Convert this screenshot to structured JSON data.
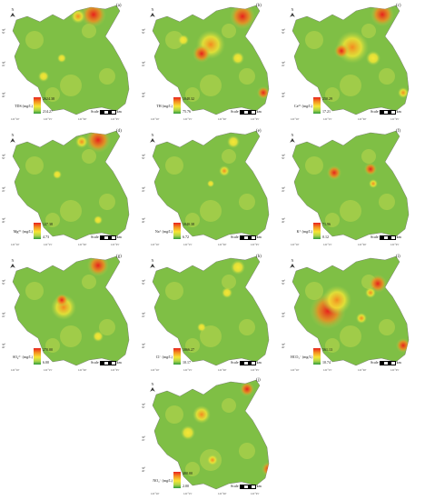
{
  "lat_labels": [
    "38°\n50′",
    "38°\n45′",
    "38°\n40′"
  ],
  "lon_labels": [
    "121°10′",
    "121°15′",
    "121°20′",
    "121°25′"
  ],
  "north_symbol": "N",
  "scale_label": "Scale",
  "scale_unit": "km",
  "panels": [
    {
      "label": "(a)",
      "param": "TDS (mg/L)",
      "max": "2624.38",
      "min": "214.27"
    },
    {
      "label": "(b)",
      "param": "TH (mg/L)",
      "max": "1048.32",
      "min": "75.76"
    },
    {
      "label": "(c)",
      "param": "Ca²⁺ (mg/L)",
      "max": "250.29",
      "min": "17.21"
    },
    {
      "label": "(d)",
      "param": "Mg²⁺ (mg/L)",
      "max": "127.38",
      "min": "4.73"
    },
    {
      "label": "(e)",
      "param": "Na⁺ (mg/L)",
      "max": "1040.38",
      "min": "6.72"
    },
    {
      "label": "(f)",
      "param": "K⁺ (mg/L)",
      "max": "71.96",
      "min": "0.12"
    },
    {
      "label": "(g)",
      "param": "SO₄²⁻ (mg/L)",
      "max": "270.00",
      "min": "6.00"
    },
    {
      "label": "(h)",
      "param": "Cl⁻ (mg/L)",
      "max": "1066.27",
      "min": "10.17"
    },
    {
      "label": "(i)",
      "param": "HCO₃⁻ (mg/L)",
      "max": "561.13",
      "min": "10.74"
    },
    {
      "label": "(j)",
      "param": "NO₃⁻ (mg/L)",
      "max": "400.00",
      "min": "2.00"
    }
  ],
  "colors": {
    "high": "#e8201c",
    "upper": "#f38a20",
    "mid": "#f6e635",
    "lower": "#a8d34a",
    "low": "#2f9b3c"
  }
}
